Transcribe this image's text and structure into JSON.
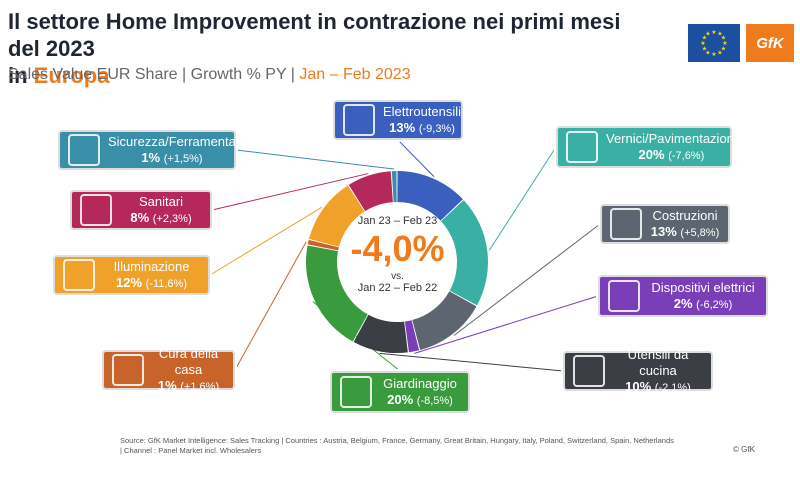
{
  "header": {
    "title_line1": "Il settore Home Improvement in contrazione nei primi mesi del 2023",
    "title_line2_prefix": "in ",
    "title_line2_accent": "Europa",
    "subtitle_main": "Sales Value EUR Share | Growth % PY | ",
    "subtitle_accent": "Jan – Feb 2023"
  },
  "logos": {
    "brand": "GfK",
    "flag": "eu-flag"
  },
  "center": {
    "period_current": "Jan 23 – Feb 23",
    "total_growth": "-4,0%",
    "vs": "vs.",
    "period_previous": "Jan 22 – Feb 22"
  },
  "chart_data": {
    "type": "pie",
    "categories": [
      "Elettroutensili",
      "Vernici/Pavimentazioni",
      "Costruzioni",
      "Dispositivi elettrici",
      "Utensili da cucina",
      "Giardinaggio",
      "Cura della casa",
      "Illuminazione",
      "Sanitari",
      "Sicurezza/Ferramenta"
    ],
    "values": [
      13,
      20,
      13,
      2,
      10,
      20,
      1,
      12,
      8,
      1
    ],
    "share_labels": [
      "13%",
      "20%",
      "13%",
      "2%",
      "10%",
      "20%",
      "1%",
      "12%",
      "8%",
      "1%"
    ],
    "growth_labels": [
      "(-9,3%)",
      "(-7,6%)",
      "(+5,8%)",
      "(-6,2%)",
      "(-2,1%)",
      "(-8,5%)",
      "(+1,6%)",
      "(-11,6%)",
      "(+2,3%)",
      "(+1,5%)"
    ],
    "colors": [
      "#3a5fbf",
      "#3ab0a5",
      "#5d6670",
      "#7a3fb8",
      "#3b3f45",
      "#3a9a3e",
      "#c8642a",
      "#f0a12a",
      "#b5285a",
      "#3a8fa8"
    ],
    "icons": [
      "drill-icon",
      "paint-bucket-icon",
      "blueprint-icon",
      "electric-device-icon",
      "kitchen-utensils-icon",
      "plant-icon",
      "household-cleaning-icon",
      "light-bulb-icon",
      "shower-icon",
      "security-camera-icon"
    ]
  },
  "footer": {
    "source_line1": "Source: GfK Market Intelligence: Sales Tracking | Countries : Austria, Belgium, France, Germany, Great Britain, Hungary, Italy, Poland, Switzerland, Spain, Netherlands",
    "source_line2": "| Channel : Panel Market incl. Wholesalers",
    "copyright": "© GfK"
  }
}
